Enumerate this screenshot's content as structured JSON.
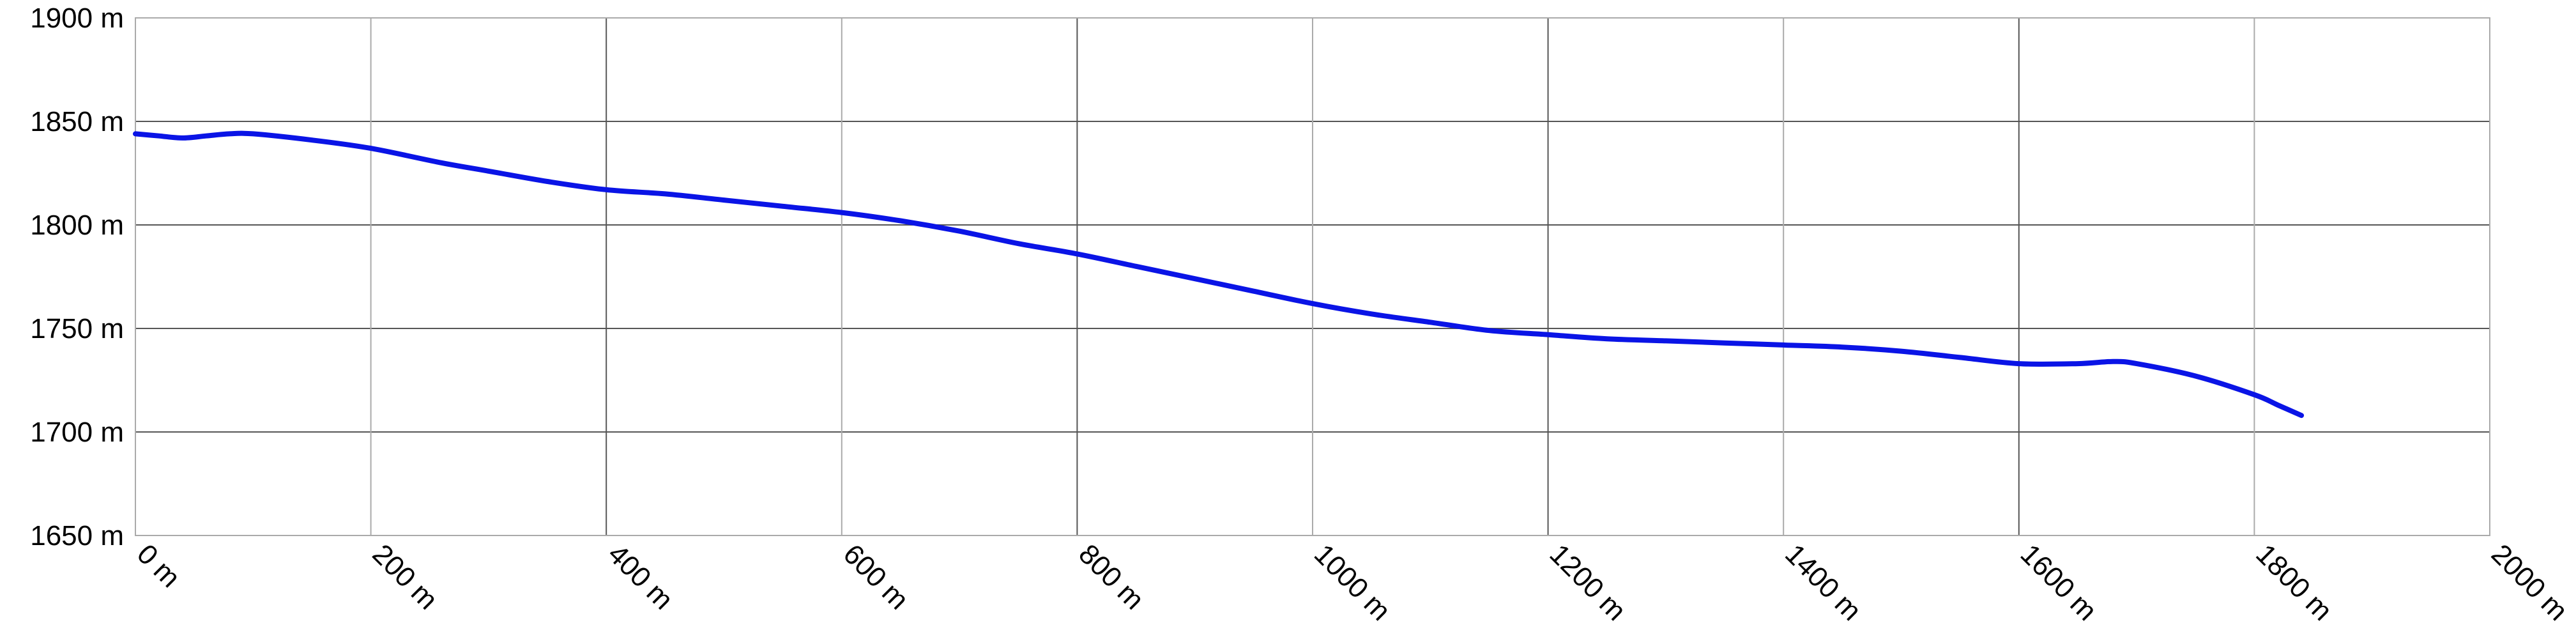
{
  "chart_data": {
    "type": "line",
    "title": "",
    "xlabel": "",
    "ylabel": "",
    "x_unit": "m",
    "y_unit": "m",
    "xlim": [
      0,
      2000
    ],
    "ylim": [
      1650,
      1900
    ],
    "x_ticks": [
      "0 m",
      "200 m",
      "400 m",
      "600 m",
      "800 m",
      "1000 m",
      "1200 m",
      "1400 m",
      "1600 m",
      "1800 m",
      "2000 m"
    ],
    "y_ticks": [
      "1650 m",
      "1700 m",
      "1750 m",
      "1800 m",
      "1850 m",
      "1900 m"
    ],
    "grid": true,
    "legend": "none",
    "colors": {
      "line": "#0a14e6",
      "grid": "#aaaaaa",
      "grid_dark": "#555555",
      "text": "#000000"
    },
    "series": [
      {
        "points": [
          [
            0,
            1844
          ],
          [
            20,
            1843
          ],
          [
            40,
            1842
          ],
          [
            60,
            1843
          ],
          [
            80,
            1844
          ],
          [
            100,
            1844
          ],
          [
            150,
            1841
          ],
          [
            200,
            1837
          ],
          [
            260,
            1830
          ],
          [
            300,
            1826
          ],
          [
            350,
            1821
          ],
          [
            400,
            1817
          ],
          [
            450,
            1815
          ],
          [
            500,
            1812
          ],
          [
            550,
            1809
          ],
          [
            600,
            1806
          ],
          [
            650,
            1802
          ],
          [
            700,
            1797
          ],
          [
            750,
            1791
          ],
          [
            800,
            1786
          ],
          [
            850,
            1780
          ],
          [
            900,
            1774
          ],
          [
            950,
            1768
          ],
          [
            1000,
            1762
          ],
          [
            1050,
            1757
          ],
          [
            1100,
            1753
          ],
          [
            1150,
            1749
          ],
          [
            1200,
            1747
          ],
          [
            1250,
            1745
          ],
          [
            1300,
            1744
          ],
          [
            1350,
            1743
          ],
          [
            1400,
            1742
          ],
          [
            1450,
            1741
          ],
          [
            1500,
            1739
          ],
          [
            1550,
            1736
          ],
          [
            1600,
            1733
          ],
          [
            1650,
            1733
          ],
          [
            1680,
            1734
          ],
          [
            1700,
            1733
          ],
          [
            1750,
            1727
          ],
          [
            1800,
            1718
          ],
          [
            1820,
            1713
          ],
          [
            1840,
            1708
          ]
        ]
      }
    ]
  }
}
